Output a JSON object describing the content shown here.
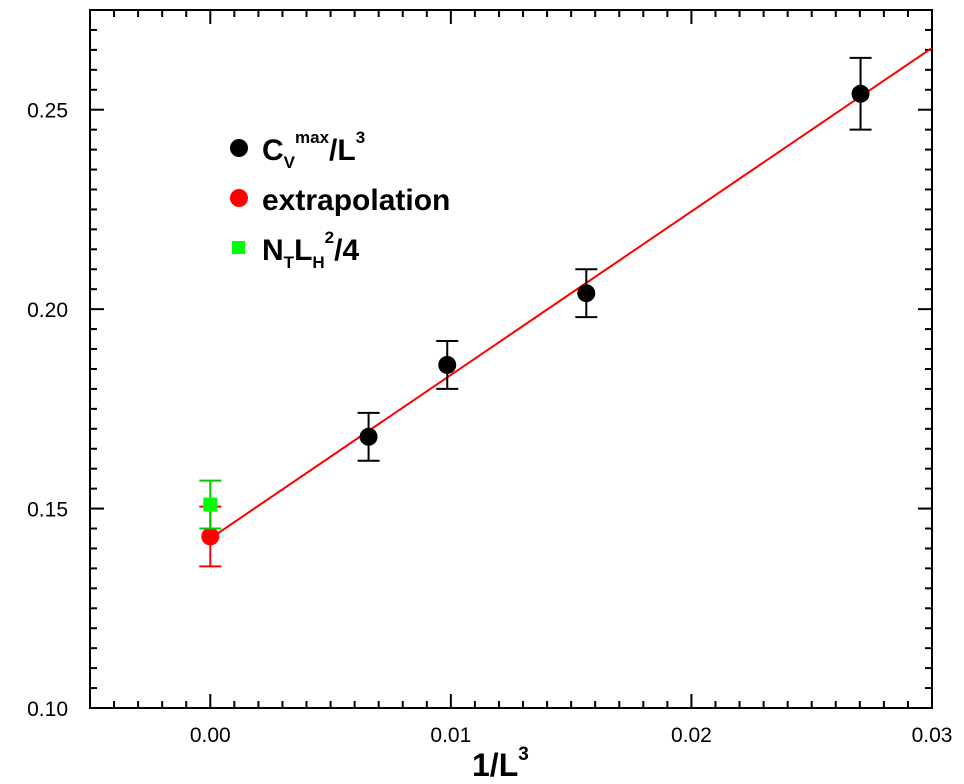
{
  "chart_data": {
    "type": "scatter",
    "xlabel": {
      "base": "1/L",
      "sup": "3"
    },
    "ylabel": "",
    "xlim": [
      -0.005,
      0.03
    ],
    "ylim": [
      0.1,
      0.275
    ],
    "xticks": [
      0.0,
      0.01,
      0.02,
      0.03
    ],
    "xtick_labels": [
      "0.00",
      "0.01",
      "0.02",
      "0.03"
    ],
    "yticks": [
      0.1,
      0.15,
      0.2,
      0.25
    ],
    "ytick_labels": [
      "0.10",
      "0.15",
      "0.20",
      "0.25"
    ],
    "grid": false,
    "legend_position": "top-left",
    "series": [
      {
        "key": "cv",
        "legend": {
          "parts": [
            [
              "C",
              "n"
            ],
            [
              "V",
              "sub"
            ],
            [
              "max",
              "sup"
            ],
            [
              "/L",
              "n"
            ],
            [
              "3",
              "sup"
            ]
          ]
        },
        "color": "#000000",
        "marker": "circle",
        "errorbar_color": "#000000",
        "points": [
          {
            "x": 0.00658,
            "y": 0.168,
            "err": 0.006
          },
          {
            "x": 0.00985,
            "y": 0.186,
            "err": 0.006
          },
          {
            "x": 0.01563,
            "y": 0.204,
            "err": 0.006
          },
          {
            "x": 0.02703,
            "y": 0.254,
            "err": 0.009
          }
        ]
      },
      {
        "key": "extrapolation",
        "legend": {
          "parts": [
            [
              "extrapolation",
              "n"
            ]
          ]
        },
        "color": "#ff0000",
        "marker": "circle",
        "errorbar_color": "#ff0000",
        "points": [
          {
            "x": 0.0,
            "y": 0.143,
            "err": 0.0075
          }
        ]
      },
      {
        "key": "nt",
        "legend": {
          "parts": [
            [
              "N",
              "n"
            ],
            [
              "T",
              "sub"
            ],
            [
              "L",
              "n"
            ],
            [
              "H",
              "sub"
            ],
            [
              "2",
              "sup"
            ],
            [
              "/4",
              "n"
            ]
          ]
        },
        "color": "#00ff00",
        "marker": "square",
        "errorbar_color": "#00cc00",
        "points": [
          {
            "x": 0.0,
            "y": 0.151,
            "err": 0.006
          }
        ]
      }
    ],
    "fit_line": {
      "color": "#ff0000",
      "x": [
        0.0,
        0.03
      ],
      "y": [
        0.1425,
        0.2655
      ]
    }
  }
}
